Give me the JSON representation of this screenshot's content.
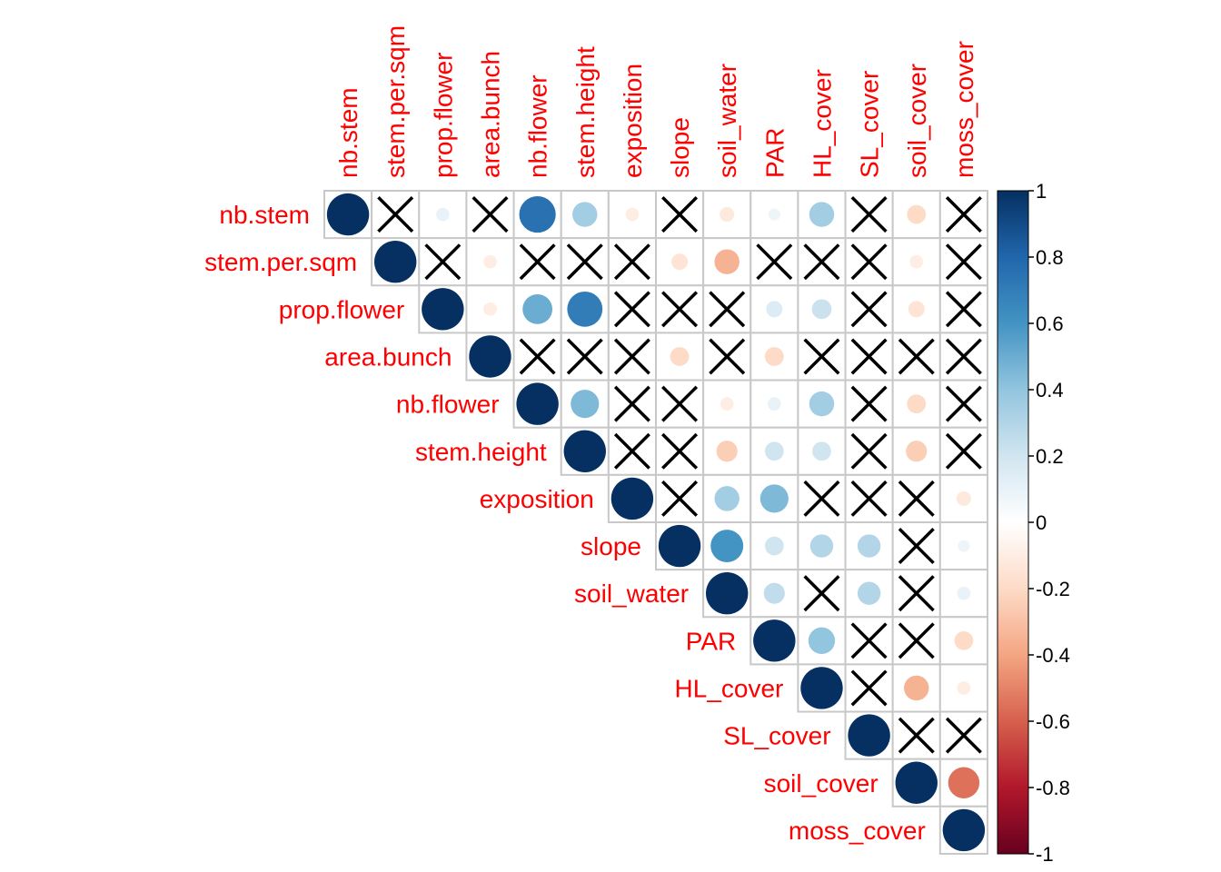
{
  "chart_data": {
    "type": "heatmap",
    "method": "circle",
    "layout": "upper-triangle",
    "insignificant_marker": "cross",
    "title": "",
    "variables": [
      "nb.stem",
      "stem.per.sqm",
      "prop.flower",
      "area.bunch",
      "nb.flower",
      "stem.height",
      "exposition",
      "slope",
      "soil_water",
      "PAR",
      "HL_cover",
      "SL_cover",
      "soil_cover",
      "moss_cover"
    ],
    "matrix": [
      [
        1,
        null,
        0.1,
        null,
        0.75,
        0.35,
        -0.1,
        null,
        -0.12,
        0.08,
        0.35,
        null,
        -0.2,
        null
      ],
      [
        null,
        1,
        null,
        -0.1,
        null,
        null,
        null,
        -0.15,
        -0.35,
        null,
        null,
        null,
        -0.1,
        null
      ],
      [
        null,
        null,
        1,
        -0.1,
        0.5,
        0.7,
        null,
        null,
        null,
        0.15,
        0.22,
        null,
        -0.15,
        null
      ],
      [
        null,
        null,
        null,
        1,
        null,
        null,
        null,
        -0.2,
        null,
        -0.2,
        null,
        null,
        null,
        null
      ],
      [
        null,
        null,
        null,
        null,
        1,
        0.45,
        null,
        null,
        -0.1,
        0.1,
        0.35,
        null,
        -0.2,
        null
      ],
      [
        null,
        null,
        null,
        null,
        null,
        1,
        null,
        null,
        -0.25,
        0.2,
        0.2,
        null,
        -0.25,
        null
      ],
      [
        null,
        null,
        null,
        null,
        null,
        null,
        1,
        null,
        0.35,
        0.45,
        null,
        null,
        null,
        -0.12
      ],
      [
        null,
        null,
        null,
        null,
        null,
        null,
        null,
        1,
        0.6,
        0.2,
        0.3,
        0.3,
        null,
        0.08
      ],
      [
        null,
        null,
        null,
        null,
        null,
        null,
        null,
        null,
        1,
        0.25,
        null,
        0.3,
        null,
        0.1
      ],
      [
        null,
        null,
        null,
        null,
        null,
        null,
        null,
        null,
        null,
        1,
        0.4,
        null,
        null,
        -0.2
      ],
      [
        null,
        null,
        null,
        null,
        null,
        null,
        null,
        null,
        null,
        null,
        1,
        null,
        -0.35,
        -0.1
      ],
      [
        null,
        null,
        null,
        null,
        null,
        null,
        null,
        null,
        null,
        null,
        null,
        1,
        null,
        null
      ],
      [
        null,
        null,
        null,
        null,
        null,
        null,
        null,
        null,
        null,
        null,
        null,
        null,
        1,
        -0.55
      ],
      [
        null,
        null,
        null,
        null,
        null,
        null,
        null,
        null,
        null,
        null,
        null,
        null,
        null,
        1
      ]
    ],
    "colorbar": {
      "range": [
        -1,
        1
      ],
      "ticks": [
        "1",
        "0.8",
        "0.6",
        "0.4",
        "0.2",
        "0",
        "-0.2",
        "-0.4",
        "-0.6",
        "-0.8",
        "-1"
      ]
    },
    "colors": {
      "negative_end": "#67001f",
      "zero": "#ffffff",
      "positive_end": "#053061",
      "label": "#ff0000",
      "grid": "#c8c8c8"
    }
  }
}
